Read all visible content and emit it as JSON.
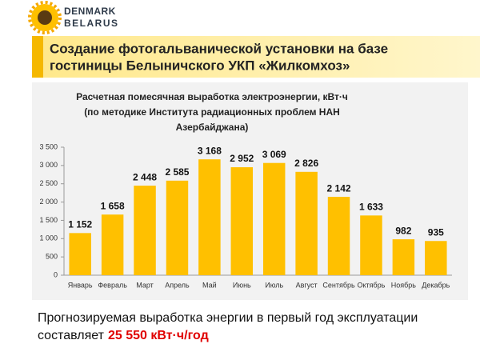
{
  "logo": {
    "lines": [
      "DENMARK",
      "BELARUS"
    ]
  },
  "header": {
    "title": [
      "Создание фотогальванической установки на базе",
      "гостиницы Белыничского УКП «Жилкомхоз»"
    ]
  },
  "chart_data": {
    "type": "bar",
    "title": [
      "Расчетная помесячная выработка электроэнергии, кВт·ч",
      "(по методике Института радиационных проблем НАН",
      "Азербайджана)"
    ],
    "categories": [
      "Январь",
      "Февраль",
      "Март",
      "Апрель",
      "Май",
      "Июнь",
      "Июль",
      "Август",
      "Сентябрь",
      "Октябрь",
      "Ноябрь",
      "Декабрь"
    ],
    "values": [
      1152,
      1658,
      2448,
      2585,
      3168,
      2952,
      3069,
      2826,
      2142,
      1633,
      982,
      935
    ],
    "value_labels": [
      "1 152",
      "1 658",
      "2 448",
      "2 585",
      "3 168",
      "2 952",
      "3 069",
      "2 826",
      "2 142",
      "1 633",
      "982",
      "935"
    ],
    "color": "#ffc000",
    "ylim": [
      0,
      3500
    ],
    "yticks": [
      0,
      500,
      {
        "value": 1000,
        "label": "1 000"
      },
      {
        "value": 1500,
        "label": "1 500"
      },
      {
        "value": 2000,
        "label": "2 000"
      },
      {
        "value": 2500,
        "label": "2 500"
      },
      {
        "value": 3000,
        "label": "3 000"
      },
      {
        "value": 3500,
        "label": "3 500"
      }
    ],
    "grid": false
  },
  "footer": {
    "lines": [
      "Прогнозируемая выработка энергии в первый год эксплуатации",
      "составляет"
    ],
    "highlight": "25 550 кВт·ч/год"
  }
}
